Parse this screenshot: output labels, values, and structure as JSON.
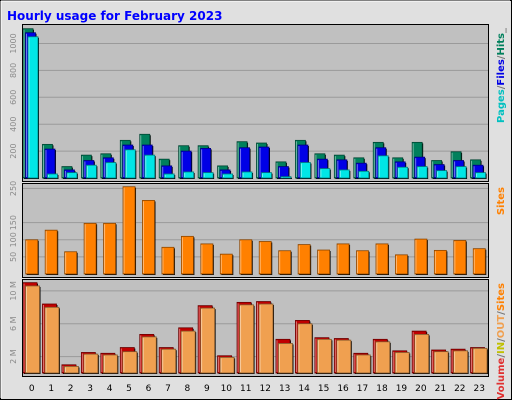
{
  "chart_data": [
    {
      "panel": "pages-files-hits",
      "type": "bar",
      "title": "Hourly usage for February 2023",
      "categories": [
        "0",
        "1",
        "2",
        "3",
        "4",
        "5",
        "6",
        "7",
        "8",
        "9",
        "10",
        "11",
        "12",
        "13",
        "14",
        "15",
        "16",
        "17",
        "18",
        "19",
        "20",
        "21",
        "22",
        "23"
      ],
      "yticks": [
        "200",
        "400",
        "600",
        "800",
        "1000"
      ],
      "ylim": [
        0,
        1130
      ],
      "series": [
        {
          "name": "Hits",
          "color": "#00805C",
          "values": [
            1110,
            250,
            85,
            170,
            180,
            280,
            325,
            140,
            240,
            240,
            90,
            270,
            260,
            120,
            280,
            180,
            170,
            150,
            265,
            150,
            265,
            130,
            195,
            135
          ]
        },
        {
          "name": "Files",
          "color": "#0000E6",
          "values": [
            1080,
            215,
            60,
            130,
            150,
            245,
            245,
            90,
            200,
            220,
            60,
            225,
            230,
            85,
            245,
            140,
            135,
            110,
            225,
            120,
            155,
            100,
            130,
            95
          ]
        },
        {
          "name": "Pages",
          "color": "#00E6E6",
          "values": [
            1050,
            30,
            40,
            95,
            115,
            210,
            170,
            30,
            45,
            40,
            30,
            45,
            40,
            10,
            115,
            70,
            60,
            50,
            165,
            80,
            85,
            55,
            85,
            40
          ]
        }
      ],
      "legend": [
        "Pages",
        "/",
        "Files",
        "/",
        "Hits",
        "_"
      ],
      "legend_colors": [
        "#00C0C0",
        "#777777",
        "#0000E6",
        "#777777",
        "#00805C",
        "#777777"
      ]
    },
    {
      "panel": "sites",
      "type": "bar",
      "categories": [
        "0",
        "1",
        "2",
        "3",
        "4",
        "5",
        "6",
        "7",
        "8",
        "9",
        "10",
        "11",
        "12",
        "13",
        "14",
        "15",
        "16",
        "17",
        "18",
        "19",
        "20",
        "21",
        "22",
        "23"
      ],
      "yticks": [
        "50",
        "100",
        "150",
        "250"
      ],
      "ylim": [
        0,
        260
      ],
      "series": [
        {
          "name": "Sites",
          "color": "#FF8000",
          "values": [
            100,
            128,
            65,
            148,
            148,
            255,
            215,
            78,
            110,
            88,
            58,
            100,
            95,
            68,
            86,
            70,
            88,
            68,
            88,
            56,
            102,
            69,
            98,
            74
          ]
        }
      ],
      "legend": [
        "Sites"
      ],
      "legend_colors": [
        "#FF8000"
      ]
    },
    {
      "panel": "volume",
      "type": "bar",
      "categories": [
        "0",
        "1",
        "2",
        "3",
        "4",
        "5",
        "6",
        "7",
        "8",
        "9",
        "10",
        "11",
        "12",
        "13",
        "14",
        "15",
        "16",
        "17",
        "18",
        "19",
        "20",
        "21",
        "22",
        "23"
      ],
      "yticks": [
        "2 M",
        "6 M",
        "10 M"
      ],
      "ylim": [
        0,
        11.2
      ],
      "series": [
        {
          "name": "Volume",
          "color": "#C00000",
          "values": [
            11.0,
            8.4,
            1.0,
            2.5,
            2.4,
            3.1,
            4.7,
            3.1,
            5.5,
            8.2,
            2.1,
            8.6,
            8.7,
            4.1,
            6.4,
            4.3,
            4.2,
            2.4,
            4.1,
            2.7,
            5.1,
            2.8,
            2.9,
            3.1
          ]
        },
        {
          "name": "Volume",
          "color": "#F0A050",
          "values": [
            10.6,
            8.0,
            0.8,
            2.3,
            2.2,
            2.6,
            4.4,
            2.9,
            5.1,
            7.9,
            1.9,
            8.3,
            8.4,
            3.6,
            6.0,
            4.1,
            4.0,
            2.2,
            3.8,
            2.5,
            4.7,
            2.6,
            2.7,
            3.0
          ]
        }
      ],
      "legend": [
        "Volume",
        "/",
        "IN",
        "/",
        "OUT",
        "/",
        "Sites"
      ],
      "legend_colors": [
        "#E03030",
        "#777777",
        "#C0C000",
        "#777777",
        "#F0A050",
        "#777777",
        "#FF8000"
      ]
    }
  ]
}
